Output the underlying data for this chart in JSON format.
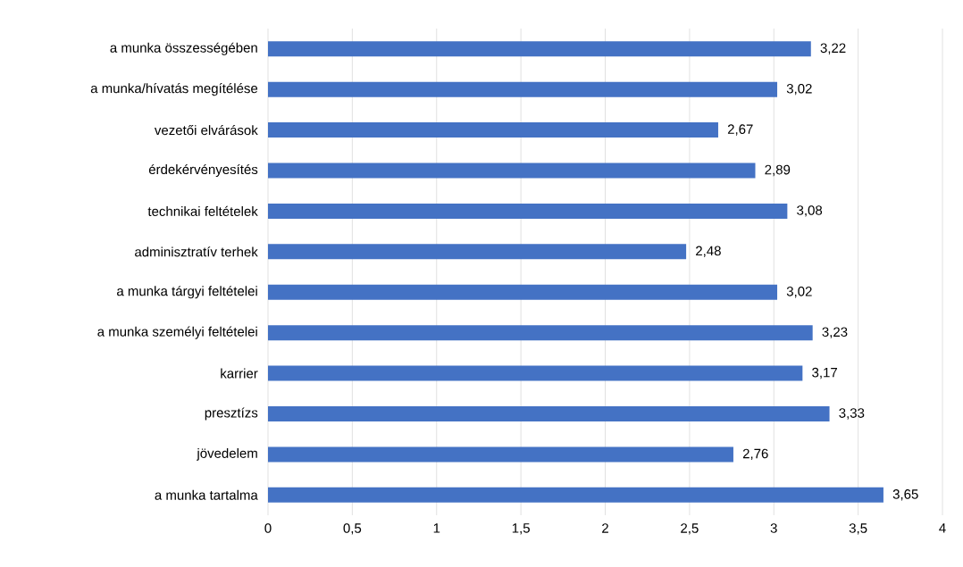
{
  "chart_data": {
    "type": "bar",
    "orientation": "horizontal",
    "categories": [
      "a munka összességében",
      "a munka/hívatás megítélése",
      "vezetői elvárások",
      "érdekérvényesítés",
      "technikai feltételek",
      "adminisztratív terhek",
      "a munka tárgyi feltételei",
      "a munka személyi feltételei",
      "karrier",
      "presztízs",
      "jövedelem",
      "a munka tartalma"
    ],
    "values": [
      3.22,
      3.02,
      2.67,
      2.89,
      3.08,
      2.48,
      3.02,
      3.23,
      3.17,
      3.33,
      2.76,
      3.65
    ],
    "value_labels": [
      "3,22",
      "3,02",
      "2,67",
      "2,89",
      "3,08",
      "2,48",
      "3,02",
      "3,23",
      "3,17",
      "3,33",
      "2,76",
      "3,65"
    ],
    "color": "#4472c4",
    "xlim": [
      0,
      4
    ],
    "xticks": [
      0,
      {
        "value": 0.5,
        "label": "0,5"
      },
      1,
      {
        "value": 1.5,
        "label": "1,5"
      },
      2,
      {
        "value": 2.5,
        "label": "2,5"
      },
      3,
      {
        "value": 3.5,
        "label": "3,5"
      },
      4
    ],
    "grid": "x"
  }
}
